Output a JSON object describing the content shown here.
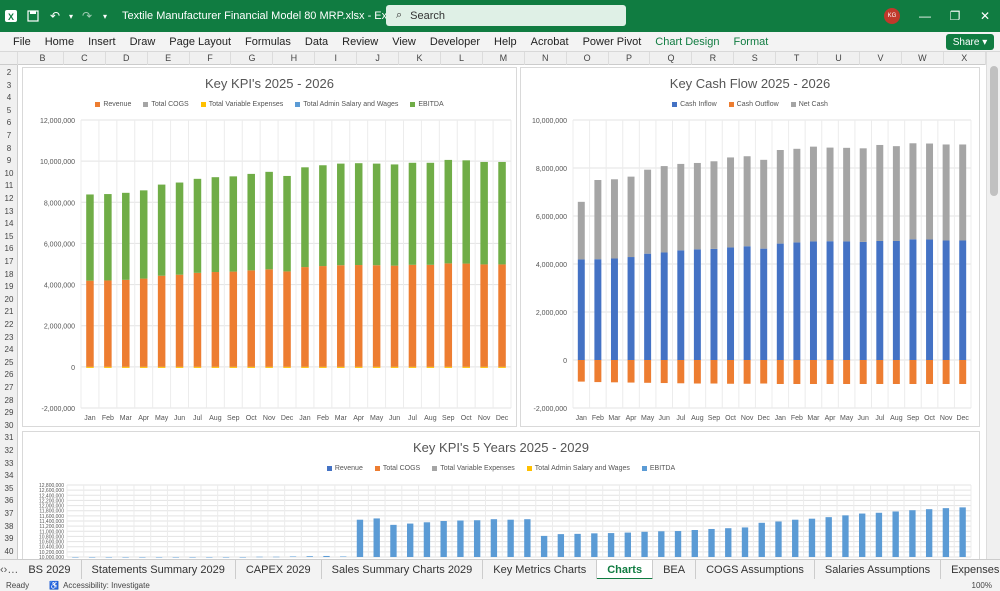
{
  "window": {
    "title": "Textile Manufacturer Financial Model 80 MRP.xlsx  -  Excel",
    "search_placeholder": "Search",
    "user_initials": "KG"
  },
  "menu": [
    "File",
    "Home",
    "Insert",
    "Draw",
    "Page Layout",
    "Formulas",
    "Data",
    "Review",
    "View",
    "Developer",
    "Help",
    "Acrobat",
    "Power Pivot",
    "Chart Design",
    "Format"
  ],
  "share_label": "Share",
  "columns": [
    "B",
    "C",
    "D",
    "E",
    "F",
    "G",
    "H",
    "I",
    "J",
    "K",
    "L",
    "M",
    "N",
    "O",
    "P",
    "Q",
    "R",
    "S",
    "T",
    "U",
    "V",
    "W",
    "X"
  ],
  "rows": [
    "2",
    "3",
    "4",
    "5",
    "6",
    "7",
    "8",
    "9",
    "10",
    "11",
    "12",
    "13",
    "14",
    "15",
    "16",
    "17",
    "18",
    "19",
    "20",
    "21",
    "22",
    "23",
    "24",
    "25",
    "26",
    "27",
    "28",
    "29",
    "30",
    "31",
    "32",
    "33",
    "34",
    "35",
    "36",
    "37",
    "38",
    "39",
    "40"
  ],
  "colors": {
    "revenue": "#4472c4",
    "cogs": "#ed7d31",
    "tve": "#a5a5a5",
    "admin": "#ffc000",
    "ebitda": "#70ad47",
    "ebitda5": "#5b9bd5",
    "brand": "#107c41"
  },
  "chart_data": [
    {
      "type": "bar",
      "title": "Key KPI's 2025 - 2026",
      "categories": [
        "Jan",
        "Feb",
        "Mar",
        "Apr",
        "May",
        "Jun",
        "Jul",
        "Aug",
        "Sep",
        "Oct",
        "Nov",
        "Dec",
        "Jan",
        "Feb",
        "Mar",
        "Apr",
        "May",
        "Jun",
        "Jul",
        "Aug",
        "Sep",
        "Oct",
        "Nov",
        "Dec"
      ],
      "ylim": [
        -2000000,
        12000000
      ],
      "yticks": [
        "12,000,000",
        "10,000,000",
        "8,000,000",
        "6,000,000",
        "4,000,000",
        "2,000,000",
        "0",
        "-2,000,000"
      ],
      "series": [
        {
          "name": "Revenue",
          "color": "#4472c4",
          "values": [
            4190000,
            4200000,
            4230000,
            4290000,
            4430000,
            4480000,
            4570000,
            4610000,
            4630000,
            4690000,
            4740000,
            4640000,
            4850000,
            4900000,
            4940000,
            4950000,
            4940000,
            4920000,
            4960000,
            4960000,
            5030000,
            5020000,
            4980000,
            4980000
          ]
        },
        {
          "name": "Total COGS",
          "color": "#ed7d31",
          "values": [
            4190000,
            4200000,
            4230000,
            4290000,
            4430000,
            4480000,
            4570000,
            4610000,
            4630000,
            4690000,
            4740000,
            4640000,
            4850000,
            4900000,
            4940000,
            4950000,
            4940000,
            4920000,
            4960000,
            4960000,
            5030000,
            5020000,
            4980000,
            4980000
          ]
        },
        {
          "name": "Total Variable Expenses",
          "color": "#ffc000",
          "values": [
            -50000,
            -50000,
            -50000,
            -50000,
            -50000,
            -50000,
            -50000,
            -50000,
            -50000,
            -50000,
            -50000,
            -50000,
            -50000,
            -50000,
            -50000,
            -50000,
            -50000,
            -50000,
            -50000,
            -50000,
            -50000,
            -50000,
            -50000,
            -50000
          ]
        },
        {
          "name": "Total Admin Salary and Wages",
          "color": "#4472c4",
          "values": [
            -50000,
            -50000,
            -50000,
            -50000,
            -50000,
            -50000,
            -50000,
            -50000,
            -50000,
            -50000,
            -50000,
            -50000,
            -50000,
            -50000,
            -50000,
            -50000,
            -50000,
            -50000,
            -50000,
            -50000,
            -50000,
            -50000,
            -50000,
            -50000
          ]
        },
        {
          "name": "EBITDA",
          "color": "#70ad47",
          "values": [
            4190000,
            4200000,
            4230000,
            4290000,
            4430000,
            4480000,
            4570000,
            4610000,
            4630000,
            4690000,
            4740000,
            4640000,
            4850000,
            4900000,
            4940000,
            4950000,
            4940000,
            4920000,
            4960000,
            4960000,
            5030000,
            5020000,
            4980000,
            4980000
          ]
        }
      ]
    },
    {
      "type": "bar",
      "title": "Key Cash Flow 2025 - 2026",
      "categories": [
        "Jan",
        "Feb",
        "Mar",
        "Apr",
        "May",
        "Jun",
        "Jul",
        "Aug",
        "Sep",
        "Oct",
        "Nov",
        "Dec",
        "Jan",
        "Feb",
        "Mar",
        "Apr",
        "May",
        "Jun",
        "Jul",
        "Aug",
        "Sep",
        "Oct",
        "Nov",
        "Dec"
      ],
      "ylim": [
        -2000000,
        10000000
      ],
      "yticks": [
        "10,000,000",
        "8,000,000",
        "6,000,000",
        "4,000,000",
        "2,000,000",
        "0",
        "-2,000,000"
      ],
      "series": [
        {
          "name": "Cash Inflow",
          "color": "#4472c4",
          "values": [
            4190000,
            4200000,
            4230000,
            4290000,
            4430000,
            4480000,
            4570000,
            4610000,
            4630000,
            4690000,
            4740000,
            4640000,
            4850000,
            4900000,
            4940000,
            4950000,
            4940000,
            4920000,
            4960000,
            4960000,
            5030000,
            5020000,
            4980000,
            4980000
          ]
        },
        {
          "name": "Cash Outflow",
          "color": "#ed7d31",
          "values": [
            -900000,
            -920000,
            -930000,
            -940000,
            -950000,
            -960000,
            -970000,
            -980000,
            -980000,
            -990000,
            -990000,
            -980000,
            -1000000,
            -1000000,
            -1000000,
            -1000000,
            -1000000,
            -1000000,
            -1000000,
            -1000000,
            -1000000,
            -1000000,
            -1000000,
            -1000000
          ]
        },
        {
          "name": "Net Cash",
          "color": "#a5a5a5",
          "values": [
            2400000,
            3300000,
            3300000,
            3350000,
            3500000,
            3600000,
            3600000,
            3600000,
            3650000,
            3750000,
            3750000,
            3700000,
            3900000,
            3900000,
            3950000,
            3900000,
            3900000,
            3900000,
            4000000,
            3950000,
            4000000,
            4000000,
            4000000,
            4000000
          ]
        }
      ]
    },
    {
      "type": "bar",
      "title": "Key KPI's 5 Years 2025 - 2029",
      "legend": [
        "Revenue",
        "Total COGS",
        "Total Variable Expenses",
        "Total Admin Salary and Wages",
        "EBITDA"
      ],
      "yticks": [
        "12,800,000",
        "12,600,000",
        "12,400,000",
        "12,200,000",
        "12,000,000",
        "11,800,000",
        "11,600,000",
        "11,400,000",
        "11,200,000",
        "11,000,000",
        "10,800,000",
        "10,600,000",
        "10,400,000",
        "10,200,000",
        "10,000,000"
      ],
      "ylim": [
        10000000,
        12800000
      ],
      "series": [
        {
          "name": "EBITDA",
          "color": "#5b9bd5",
          "values": [
            10000000,
            10000000,
            10000000,
            10000000,
            10000000,
            10000000,
            10000000,
            10000000,
            10000000,
            10000000,
            10000000,
            10010000,
            10010000,
            10020000,
            10030000,
            10040000,
            10020000,
            11450000,
            11500000,
            11250000,
            11300000,
            11350000,
            11400000,
            11420000,
            11430000,
            11470000,
            11450000,
            11470000,
            10820000,
            10890000,
            10900000,
            10920000,
            10930000,
            10950000,
            10980000,
            11000000,
            11010000,
            11050000,
            11090000,
            11120000,
            11150000,
            11330000,
            11380000,
            11450000,
            11490000,
            11550000,
            11620000,
            11690000,
            11720000,
            11770000,
            11820000,
            11860000,
            11900000,
            11930000
          ]
        }
      ]
    }
  ],
  "sheet_tabs": [
    "BS 2029",
    "Statements Summary 2029",
    "CAPEX 2029",
    "Sales Summary Charts 2029",
    "Key Metrics Charts",
    "Charts",
    "BEA",
    "COGS Assumptions",
    "Salaries Assumptions",
    "Expenses",
    "C..."
  ],
  "active_tab": "Charts",
  "status": {
    "ready": "Ready",
    "accessibility": "Accessibility: Investigate",
    "zoom": "100%"
  }
}
